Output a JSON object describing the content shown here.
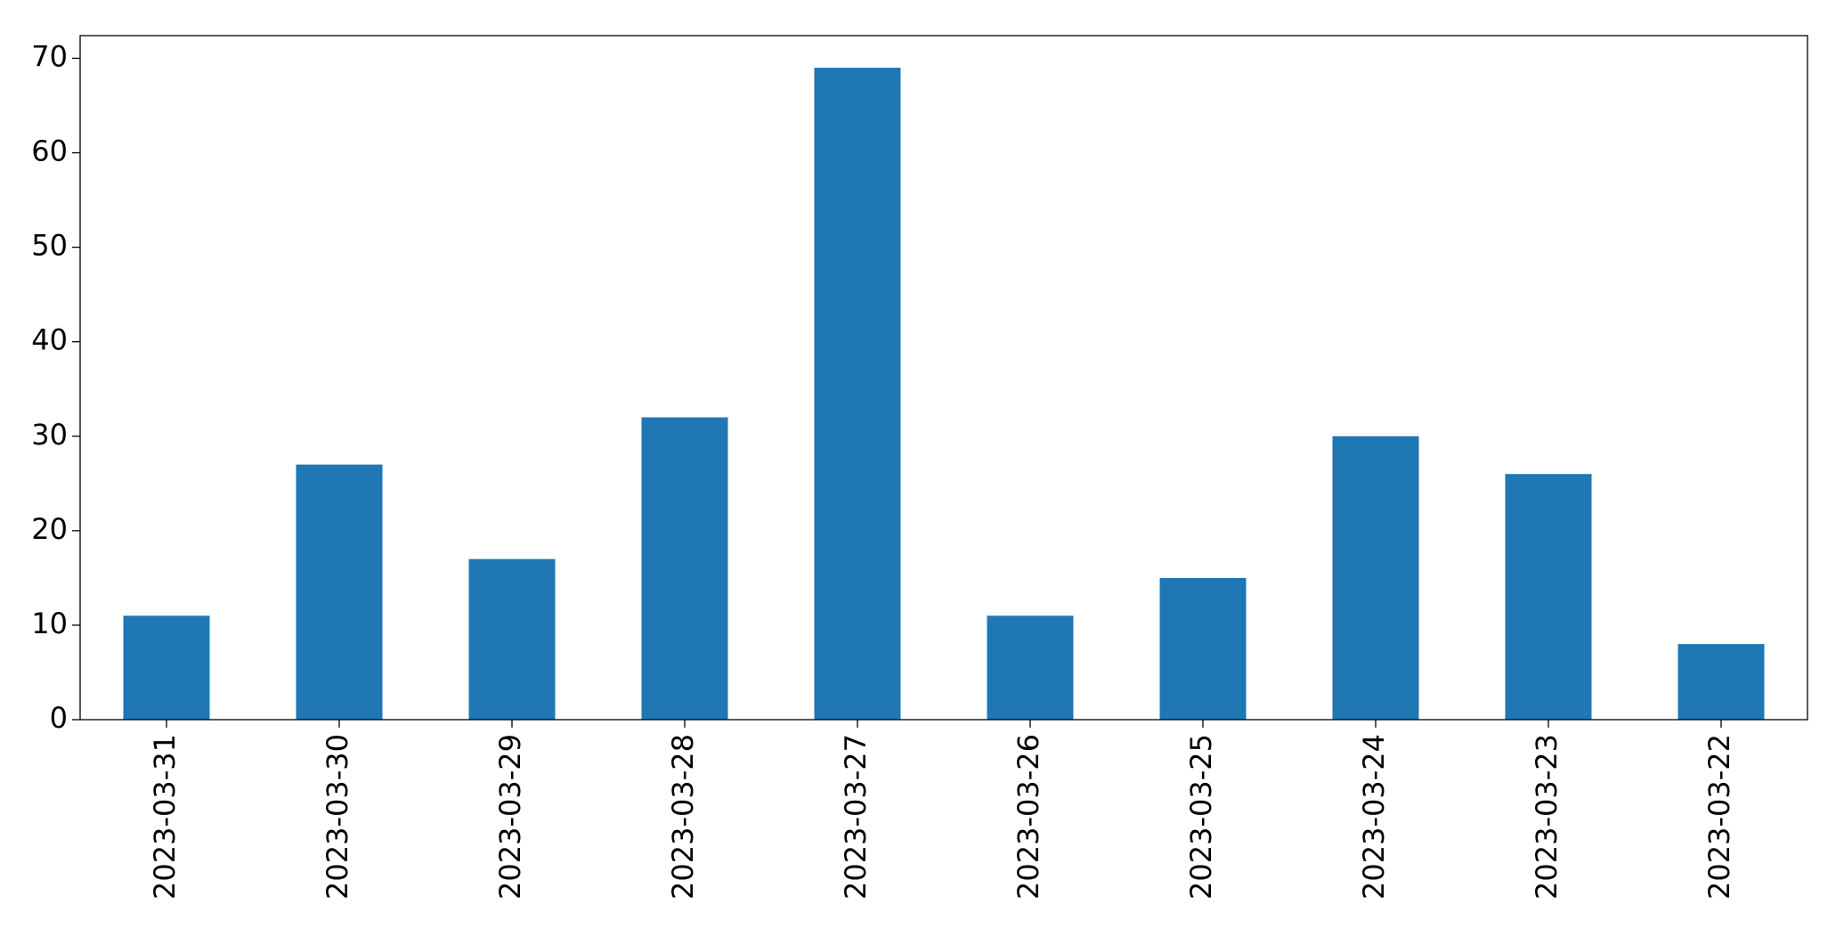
{
  "chart_data": {
    "type": "bar",
    "categories": [
      "2023-03-31",
      "2023-03-30",
      "2023-03-29",
      "2023-03-28",
      "2023-03-27",
      "2023-03-26",
      "2023-03-25",
      "2023-03-24",
      "2023-03-23",
      "2023-03-22"
    ],
    "values": [
      11,
      27,
      17,
      32,
      69,
      11,
      15,
      30,
      26,
      8
    ],
    "color": "#1f77b4",
    "ylim": [
      0,
      72.4
    ],
    "yticks": [
      0,
      10,
      20,
      30,
      40,
      50,
      60,
      70
    ],
    "grid": false
  }
}
